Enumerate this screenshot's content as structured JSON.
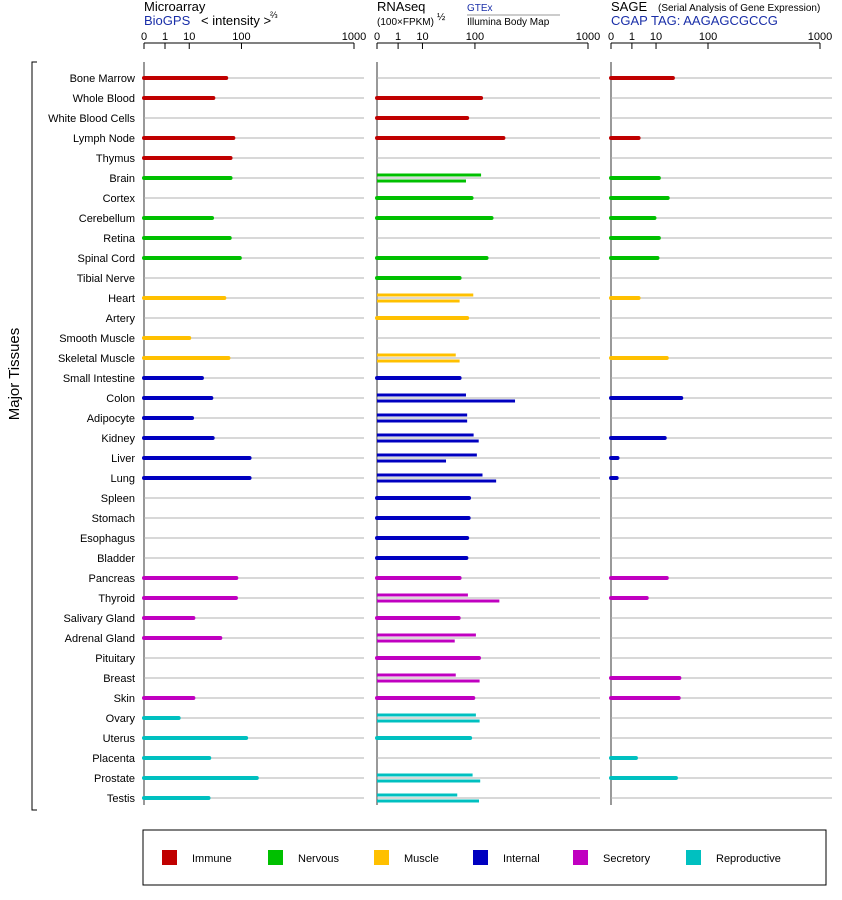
{
  "chart_data": {
    "type": "bar",
    "ylabel": "Major Tissues",
    "axis_ticks": [
      "0",
      "1",
      "10",
      "100",
      "1000"
    ],
    "axis_tick_values": [
      0,
      1,
      10,
      100,
      1000
    ],
    "tissues": [
      {
        "name": "Bone Marrow",
        "group": "Immune"
      },
      {
        "name": "Whole Blood",
        "group": "Immune"
      },
      {
        "name": "White Blood Cells",
        "group": "Immune"
      },
      {
        "name": "Lymph Node",
        "group": "Immune"
      },
      {
        "name": "Thymus",
        "group": "Immune"
      },
      {
        "name": "Brain",
        "group": "Nervous"
      },
      {
        "name": "Cortex",
        "group": "Nervous"
      },
      {
        "name": "Cerebellum",
        "group": "Nervous"
      },
      {
        "name": "Retina",
        "group": "Nervous"
      },
      {
        "name": "Spinal Cord",
        "group": "Nervous"
      },
      {
        "name": "Tibial Nerve",
        "group": "Nervous"
      },
      {
        "name": "Heart",
        "group": "Muscle"
      },
      {
        "name": "Artery",
        "group": "Muscle"
      },
      {
        "name": "Smooth Muscle",
        "group": "Muscle"
      },
      {
        "name": "Skeletal Muscle",
        "group": "Muscle"
      },
      {
        "name": "Small Intestine",
        "group": "Internal"
      },
      {
        "name": "Colon",
        "group": "Internal"
      },
      {
        "name": "Adipocyte",
        "group": "Internal"
      },
      {
        "name": "Kidney",
        "group": "Internal"
      },
      {
        "name": "Liver",
        "group": "Internal"
      },
      {
        "name": "Lung",
        "group": "Internal"
      },
      {
        "name": "Spleen",
        "group": "Internal"
      },
      {
        "name": "Stomach",
        "group": "Internal"
      },
      {
        "name": "Esophagus",
        "group": "Internal"
      },
      {
        "name": "Bladder",
        "group": "Internal"
      },
      {
        "name": "Pancreas",
        "group": "Secretory"
      },
      {
        "name": "Thyroid",
        "group": "Secretory"
      },
      {
        "name": "Salivary Gland",
        "group": "Secretory"
      },
      {
        "name": "Adrenal Gland",
        "group": "Secretory"
      },
      {
        "name": "Pituitary",
        "group": "Secretory"
      },
      {
        "name": "Breast",
        "group": "Secretory"
      },
      {
        "name": "Skin",
        "group": "Secretory"
      },
      {
        "name": "Ovary",
        "group": "Reproductive"
      },
      {
        "name": "Uterus",
        "group": "Reproductive"
      },
      {
        "name": "Placenta",
        "group": "Reproductive"
      },
      {
        "name": "Prostate",
        "group": "Reproductive"
      },
      {
        "name": "Testis",
        "group": "Reproductive"
      }
    ],
    "legend": [
      {
        "name": "Immune",
        "color": "#c00000"
      },
      {
        "name": "Nervous",
        "color": "#00c000"
      },
      {
        "name": "Muscle",
        "color": "#ffc000"
      },
      {
        "name": "Internal",
        "color": "#0000c0"
      },
      {
        "name": "Secretory",
        "color": "#c000c0"
      },
      {
        "name": "Reproductive",
        "color": "#00c0c0"
      }
    ],
    "panels": [
      {
        "title": "Microarray",
        "source": "BioGPS",
        "units_label": "< intensity >",
        "units_exp": "⅔",
        "values": [
          [
            60
          ],
          [
            36
          ],
          [],
          [
            77
          ],
          [
            70
          ],
          [
            70
          ],
          [],
          [
            34
          ],
          [
            68
          ],
          [
            95
          ],
          [],
          [
            56
          ],
          [],
          [
            10
          ],
          [
            65
          ],
          [
            21
          ],
          [
            33
          ],
          [
            12
          ],
          [
            35
          ],
          [
            127
          ],
          [
            127
          ],
          [],
          [],
          [],
          [],
          [
            85
          ],
          [
            84
          ],
          [
            13
          ],
          [
            48
          ],
          [],
          [],
          [
            13
          ],
          [
            4.5
          ],
          [
            115
          ],
          [
            30
          ],
          [
            155
          ],
          [
            29
          ]
        ]
      },
      {
        "title": "RNAseq",
        "units_label": "(100×FPKM)",
        "units_exp": "½",
        "source_a": "GTEx",
        "source_b": "Illumina Body Map",
        "values": [
          [],
          [
            120
          ],
          [
            78
          ],
          [
            215
          ],
          [],
          [
            120,
            75
          ],
          [
            90
          ],
          [
            160
          ],
          [],
          [
            140
          ],
          [
            60
          ],
          [
            95,
            60
          ],
          [
            78
          ],
          [],
          [
            52,
            60
          ],
          [
            60
          ],
          [
            75,
            280
          ],
          [
            78,
            78
          ],
          [
            96,
            112
          ],
          [
            106,
            35
          ],
          [
            125,
            180
          ],
          [
            83
          ],
          [
            82
          ],
          [
            78
          ],
          [
            76
          ],
          [
            60
          ],
          [
            80,
            195
          ],
          [
            58
          ],
          [
            103,
            50
          ],
          [
            113
          ],
          [
            52,
            115
          ],
          [
            95
          ],
          [
            103,
            115
          ],
          [
            86
          ],
          [],
          [
            93,
            117
          ],
          [
            55,
            113
          ]
        ]
      },
      {
        "title": "SAGE",
        "subtitle": "(Serial Analysis of Gene Expression)",
        "source": "CGAP TAG: AAGAGCGCCG",
        "values": [
          [
            26
          ],
          [],
          [],
          [
            2.3
          ],
          [],
          [
            12
          ],
          [
            20
          ],
          [
            9
          ],
          [
            12
          ],
          [
            11
          ],
          [],
          [
            2.3
          ],
          [],
          [],
          [
            19
          ],
          [],
          [
            38
          ],
          [],
          [
            17
          ],
          [
            0.03
          ],
          [
            0.02
          ],
          [],
          [],
          [],
          [],
          [
            19
          ],
          [
            5
          ],
          [],
          [],
          [],
          [
            35
          ],
          [
            34
          ],
          [],
          [],
          [
            1.7
          ],
          [
            30
          ],
          []
        ]
      }
    ]
  }
}
